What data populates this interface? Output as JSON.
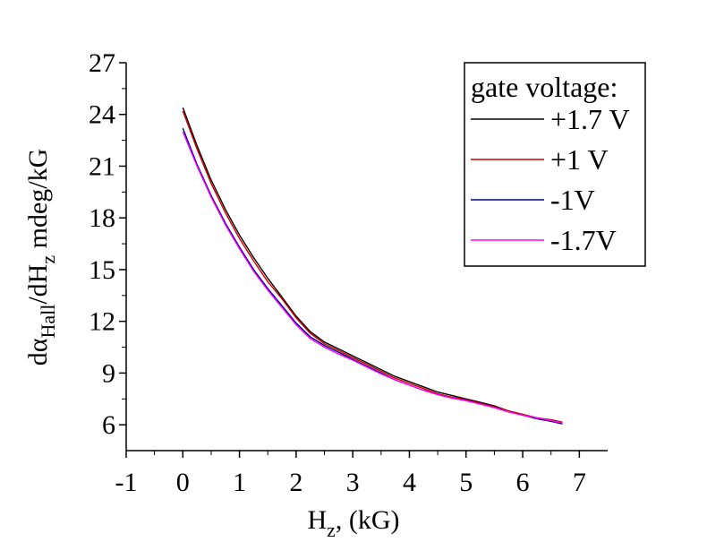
{
  "chart_data": {
    "type": "line",
    "title": "",
    "xlabel_main": "H",
    "xlabel_sub": "z",
    "xlabel_rest": ", (kG)",
    "ylabel_parts": [
      {
        "text": "dα",
        "sub": false
      },
      {
        "text": "Hall",
        "sub": true
      },
      {
        "text": "/dH",
        "sub": false
      },
      {
        "text": "z",
        "sub": true
      },
      {
        "text": " mdeg/kG",
        "sub": false
      }
    ],
    "xlim": [
      -1,
      7.5
    ],
    "ylim": [
      4.5,
      27
    ],
    "xticks": [
      -1,
      0,
      1,
      2,
      3,
      4,
      5,
      6,
      7
    ],
    "xtick_labels": [
      "-1",
      "0",
      "1",
      "2",
      "3",
      "4",
      "5",
      "6",
      "7"
    ],
    "yticks": [
      6,
      9,
      12,
      15,
      18,
      21,
      24,
      27
    ],
    "ytick_labels": [
      "6",
      "9",
      "12",
      "15",
      "18",
      "21",
      "24",
      "27"
    ],
    "grid": false,
    "legend": {
      "title": "gate voltage:",
      "placement": "top-right"
    },
    "series": [
      {
        "name": "+1.7 V",
        "color": "#000000",
        "x": [
          0,
          0.25,
          0.5,
          0.75,
          1.0,
          1.25,
          1.5,
          1.75,
          2.0,
          2.25,
          2.5,
          2.75,
          3.0,
          3.25,
          3.5,
          3.75,
          4.0,
          4.25,
          4.5,
          4.75,
          5.0,
          5.25,
          5.5,
          5.75,
          6.0,
          6.25,
          6.5,
          6.7
        ],
        "y": [
          24.4,
          22.2,
          20.2,
          18.5,
          17.0,
          15.7,
          14.5,
          13.4,
          12.3,
          11.4,
          10.8,
          10.4,
          10.0,
          9.6,
          9.2,
          8.8,
          8.5,
          8.2,
          7.9,
          7.7,
          7.5,
          7.3,
          7.1,
          6.8,
          6.6,
          6.4,
          6.25,
          6.1
        ]
      },
      {
        "name": "+1 V",
        "color": "#cc0000",
        "x": [
          0,
          0.25,
          0.5,
          0.75,
          1.0,
          1.25,
          1.5,
          1.75,
          2.0,
          2.25,
          2.5,
          2.75,
          3.0,
          3.25,
          3.5,
          3.75,
          4.0,
          4.25,
          4.5,
          4.75,
          5.0,
          5.25,
          5.5,
          5.75,
          6.0,
          6.25,
          6.5,
          6.7
        ],
        "y": [
          24.2,
          22.0,
          20.0,
          18.3,
          16.8,
          15.5,
          14.3,
          13.3,
          12.2,
          11.3,
          10.7,
          10.3,
          9.9,
          9.5,
          9.1,
          8.7,
          8.4,
          8.1,
          7.8,
          7.6,
          7.45,
          7.25,
          7.05,
          6.8,
          6.6,
          6.4,
          6.3,
          6.15
        ]
      },
      {
        "name": "-1V",
        "color": "#000080",
        "x": [
          0,
          0.25,
          0.5,
          0.75,
          1.0,
          1.25,
          1.5,
          1.75,
          2.0,
          2.25,
          2.5,
          2.75,
          3.0,
          3.25,
          3.5,
          3.75,
          4.0,
          4.25,
          4.5,
          4.75,
          5.0,
          5.25,
          5.5,
          5.75,
          6.0,
          6.25,
          6.5,
          6.7
        ],
        "y": [
          23.2,
          21.1,
          19.3,
          17.7,
          16.3,
          15.0,
          13.9,
          12.9,
          11.9,
          11.1,
          10.6,
          10.2,
          9.8,
          9.4,
          9.0,
          8.6,
          8.3,
          8.0,
          7.75,
          7.55,
          7.4,
          7.2,
          7.0,
          6.75,
          6.55,
          6.35,
          6.2,
          6.05
        ]
      },
      {
        "name": "-1.7V",
        "color": "#ff00ff",
        "x": [
          0,
          0.25,
          0.5,
          0.75,
          1.0,
          1.25,
          1.5,
          1.75,
          2.0,
          2.25,
          2.5,
          2.75,
          3.0,
          3.25,
          3.5,
          3.75,
          4.0,
          4.25,
          4.5,
          4.75,
          5.0,
          5.25,
          5.5,
          5.75,
          6.0,
          6.25,
          6.5,
          6.7
        ],
        "y": [
          23.0,
          21.0,
          19.2,
          17.6,
          16.2,
          14.9,
          13.8,
          12.8,
          11.8,
          11.0,
          10.5,
          10.1,
          9.75,
          9.35,
          8.95,
          8.6,
          8.3,
          8.0,
          7.75,
          7.55,
          7.4,
          7.2,
          7.0,
          6.75,
          6.55,
          6.4,
          6.25,
          6.1
        ]
      }
    ]
  }
}
